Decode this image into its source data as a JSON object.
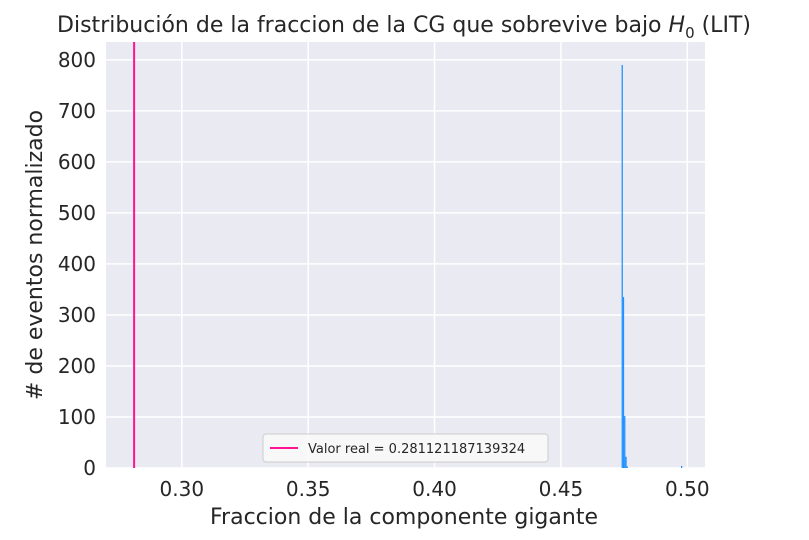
{
  "chart_data": {
    "type": "bar",
    "title_text": "Distribución de la fraccion de la CG que sobrevive bajo ",
    "title_math": "H",
    "title_math_sub": "0",
    "title_suffix": " (LIT)",
    "xlabel": "Fraccion de la componente gigante",
    "ylabel": "# de eventos normalizado",
    "xlim": [
      0.27,
      0.507
    ],
    "ylim": [
      0,
      835
    ],
    "x_ticks": [
      0.3,
      0.35,
      0.4,
      0.45,
      0.5
    ],
    "x_tick_labels": [
      "0.30",
      "0.35",
      "0.40",
      "0.45",
      "0.50"
    ],
    "y_ticks": [
      0,
      100,
      200,
      300,
      400,
      500,
      600,
      700,
      800
    ],
    "y_tick_labels": [
      "0",
      "100",
      "200",
      "300",
      "400",
      "500",
      "600",
      "700",
      "800"
    ],
    "grid": true,
    "legend_position": "lower-center",
    "bar_color": "#1e90ff",
    "vline_color": "#ff1493",
    "series": [
      {
        "kind": "histogram",
        "bin_width": 0.0005,
        "bins": [
          {
            "x": 0.474,
            "height": 790
          },
          {
            "x": 0.4745,
            "height": 335
          },
          {
            "x": 0.475,
            "height": 102
          },
          {
            "x": 0.4755,
            "height": 22
          },
          {
            "x": 0.476,
            "height": 3
          },
          {
            "x": 0.4975,
            "height": 4
          }
        ]
      },
      {
        "kind": "vline",
        "name": "Valor real = 0.281121187139324",
        "x": 0.281121187139324
      }
    ],
    "legend": [
      {
        "label": "Valor real = 0.281121187139324",
        "color": "#ff1493"
      }
    ]
  }
}
